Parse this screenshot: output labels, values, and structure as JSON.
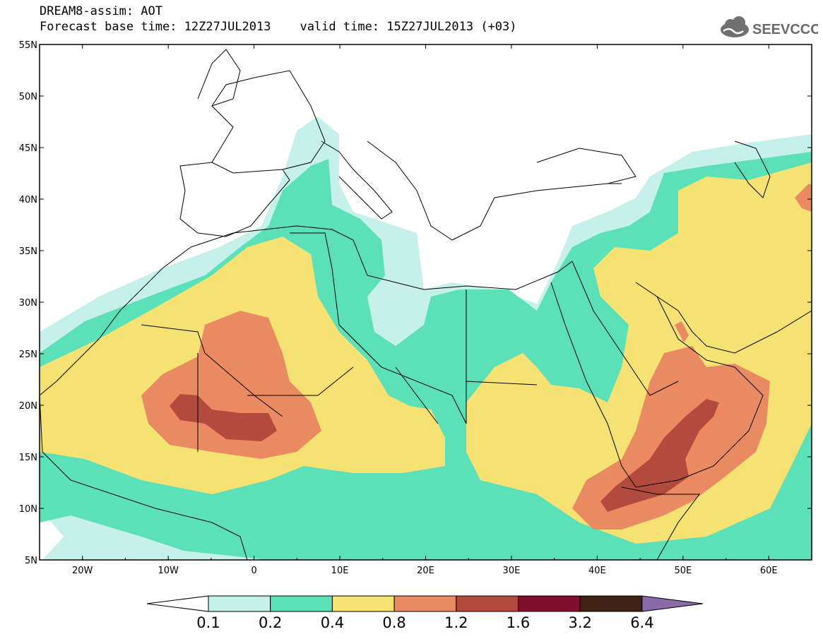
{
  "header": {
    "line1": "DREAM8-assim: AOT",
    "line2": "Forecast base time: 12Z27JUL2013    valid time: 15Z27JUL2013 (+03)"
  },
  "logo": {
    "text": "SEEVCCC",
    "icon": "cloud-icon"
  },
  "map": {
    "lon_range": [
      -25,
      65
    ],
    "lat_range": [
      5,
      55
    ],
    "lat_labels": [
      "55N",
      "50N",
      "45N",
      "40N",
      "35N",
      "30N",
      "25N",
      "20N",
      "15N",
      "10N",
      "5N"
    ],
    "lon_labels": [
      "20W",
      "10W",
      "0",
      "10E",
      "20E",
      "30E",
      "40E",
      "50E",
      "60E"
    ]
  },
  "colorbar": {
    "ticks": [
      "0.1",
      "0.2",
      "0.4",
      "0.8",
      "1.2",
      "1.6",
      "3.2",
      "6.4"
    ],
    "colors": [
      "#ffffff",
      "#c6f0ea",
      "#5be0b8",
      "#f5e273",
      "#e98a63",
      "#b24b3d",
      "#810d2c",
      "#3e2112",
      "#8a6aa8"
    ]
  },
  "colors": {
    "frame": "#000000",
    "background": "#ffffff"
  }
}
